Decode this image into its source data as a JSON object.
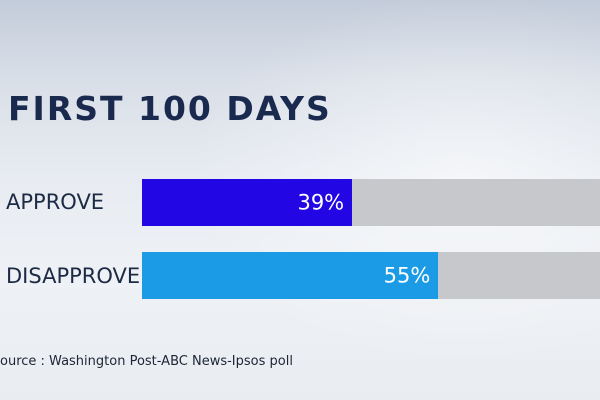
{
  "chart_data": {
    "type": "bar",
    "orientation": "horizontal",
    "title": "FIRST 100 DAYS",
    "categories": [
      "APPROVE",
      "DISAPPROVE"
    ],
    "values": [
      39,
      55
    ],
    "value_labels": [
      "39%",
      "55%"
    ],
    "colors": [
      "#2206e4",
      "#1b9be6"
    ],
    "track_color": "#c6c8cc",
    "xlim": [
      0,
      85
    ],
    "grid": false,
    "legend": "none",
    "source": "ource : Washington Post-ABC News-Ipsos poll"
  }
}
